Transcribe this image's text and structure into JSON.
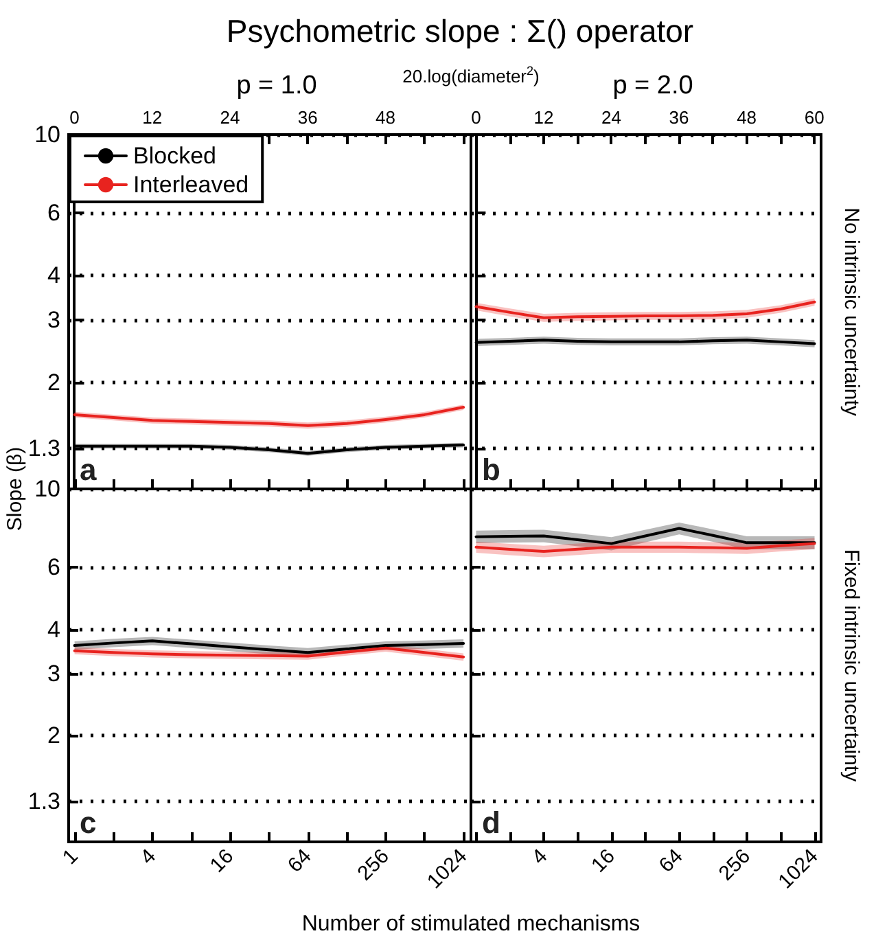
{
  "chart_data": [
    {
      "type": "line",
      "title": "Psychometric slope : Σ() operator",
      "subtitle": "p = 1.0",
      "x2label": "20.log(diameter$^{2}$)",
      "ylabel": "Slope (β)",
      "tick_labels": "y",
      "xlim": [
        0.9,
        1170
      ],
      "xticks": [
        1,
        {
          "value": 2,
          "label": null
        },
        4,
        {
          "value": 8,
          "label": null
        },
        16,
        {
          "value": 32,
          "label": null
        },
        64,
        {
          "value": 128,
          "label": null
        },
        256,
        {
          "value": 512,
          "label": null
        },
        1024
      ],
      "x2lim": [
        -0.9,
        61.2
      ],
      "x2ticks": [
        0,
        {
          "value": 6,
          "label": null
        },
        12,
        {
          "value": 18,
          "label": null
        },
        24,
        {
          "value": 30,
          "label": null
        },
        36,
        {
          "value": 42,
          "label": null
        },
        48,
        {
          "value": 54,
          "label": null
        },
        {
          "value": 60,
          "label": null
        }
      ],
      "ylim": [
        1,
        10
      ],
      "yticks": [
        1.3,
        2,
        3,
        4,
        6,
        10
      ],
      "log": "xy",
      "grid": "y",
      "legend": "top left",
      "annotations": [
        "a"
      ],
      "x": [
        1,
        2,
        4,
        8,
        16,
        32,
        64,
        128,
        256,
        512,
        1024
      ],
      "series": [
        {
          "name": "Blocked",
          "color": "#000000",
          "values": [
            1.32,
            1.32,
            1.32,
            1.32,
            1.31,
            1.29,
            1.26,
            1.29,
            1.31,
            1.32,
            1.33
          ],
          "lower": [
            1.3,
            1.3,
            1.3,
            1.3,
            1.29,
            1.27,
            1.24,
            1.27,
            1.29,
            1.3,
            1.31
          ],
          "upper": [
            1.34,
            1.34,
            1.34,
            1.34,
            1.33,
            1.31,
            1.28,
            1.31,
            1.33,
            1.34,
            1.35
          ]
        },
        {
          "name": "Interleaved",
          "color": "#e8231f",
          "values": [
            1.62,
            1.59,
            1.56,
            1.55,
            1.54,
            1.53,
            1.51,
            1.53,
            1.57,
            1.62,
            1.7
          ],
          "lower": [
            1.59,
            1.56,
            1.53,
            1.52,
            1.51,
            1.5,
            1.48,
            1.5,
            1.54,
            1.59,
            1.67
          ],
          "upper": [
            1.65,
            1.62,
            1.59,
            1.58,
            1.57,
            1.56,
            1.54,
            1.56,
            1.6,
            1.65,
            1.73
          ]
        }
      ]
    },
    {
      "type": "line",
      "subtitle": "p = 2.0",
      "xlim": [
        0.9,
        1170
      ],
      "xticks": [
        1,
        {
          "value": 2,
          "label": null
        },
        4,
        {
          "value": 8,
          "label": null
        },
        16,
        {
          "value": 32,
          "label": null
        },
        64,
        {
          "value": 128,
          "label": null
        },
        256,
        {
          "value": 512,
          "label": null
        },
        1024
      ],
      "x2lim": [
        -0.9,
        61.2
      ],
      "x2ticks": [
        0,
        {
          "value": 6,
          "label": null
        },
        12,
        {
          "value": 18,
          "label": null
        },
        24,
        {
          "value": 30,
          "label": null
        },
        36,
        {
          "value": 42,
          "label": null
        },
        48,
        {
          "value": 54,
          "label": null
        },
        60
      ],
      "ylim": [
        1,
        10
      ],
      "yticks": [
        1.3,
        2,
        3,
        4,
        6,
        10
      ],
      "log": "xy",
      "grid": "y",
      "tick_labels": false,
      "annotations": [
        "b",
        "No intrinsic uncertainty"
      ],
      "x": [
        1,
        2,
        4,
        8,
        16,
        32,
        64,
        128,
        256,
        512,
        1024
      ],
      "series": [
        {
          "color": "#000000",
          "values": [
            2.59,
            2.61,
            2.63,
            2.61,
            2.6,
            2.6,
            2.6,
            2.62,
            2.63,
            2.6,
            2.57
          ],
          "lower": [
            2.53,
            2.55,
            2.57,
            2.55,
            2.54,
            2.54,
            2.54,
            2.56,
            2.57,
            2.54,
            2.51
          ],
          "upper": [
            2.65,
            2.67,
            2.69,
            2.67,
            2.66,
            2.66,
            2.66,
            2.68,
            2.69,
            2.66,
            2.63
          ]
        },
        {
          "color": "#e8231f",
          "values": [
            3.27,
            3.15,
            3.04,
            3.06,
            3.07,
            3.08,
            3.08,
            3.09,
            3.12,
            3.22,
            3.37
          ],
          "lower": [
            3.19,
            3.07,
            2.96,
            2.98,
            2.99,
            3.0,
            3.0,
            3.01,
            3.04,
            3.14,
            3.29
          ],
          "upper": [
            3.35,
            3.23,
            3.12,
            3.14,
            3.15,
            3.16,
            3.16,
            3.17,
            3.2,
            3.3,
            3.45
          ]
        }
      ]
    },
    {
      "type": "line",
      "xlabel": "Number of stimulated mechanisms",
      "xlim": [
        0.9,
        1170
      ],
      "xticks": [
        1,
        {
          "value": 2,
          "label": null
        },
        4,
        {
          "value": 8,
          "label": null
        },
        16,
        {
          "value": 32,
          "label": null
        },
        64,
        {
          "value": 128,
          "label": null
        },
        256,
        {
          "value": 512,
          "label": null
        },
        1024
      ],
      "ylim": [
        1,
        10
      ],
      "yticks": [
        1.3,
        2,
        3,
        4,
        6,
        10
      ],
      "log": "xy",
      "grid": "y",
      "annotations": [
        "c"
      ],
      "x": [
        1,
        2,
        4,
        8,
        16,
        32,
        64,
        128,
        256,
        512,
        1024
      ],
      "series": [
        {
          "color": "#000000",
          "values": [
            3.6,
            3.66,
            3.71,
            3.64,
            3.57,
            3.5,
            3.44,
            3.52,
            3.6,
            3.62,
            3.65
          ],
          "lower": [
            3.5,
            3.56,
            3.61,
            3.54,
            3.47,
            3.4,
            3.34,
            3.42,
            3.5,
            3.52,
            3.55
          ],
          "upper": [
            3.7,
            3.76,
            3.81,
            3.74,
            3.67,
            3.6,
            3.54,
            3.62,
            3.7,
            3.72,
            3.75
          ]
        },
        {
          "color": "#e8231f",
          "values": [
            3.48,
            3.44,
            3.41,
            3.39,
            3.38,
            3.37,
            3.36,
            3.45,
            3.54,
            3.44,
            3.34
          ],
          "lower": [
            3.4,
            3.36,
            3.33,
            3.31,
            3.3,
            3.29,
            3.28,
            3.37,
            3.46,
            3.36,
            3.26
          ],
          "upper": [
            3.56,
            3.52,
            3.49,
            3.47,
            3.46,
            3.45,
            3.44,
            3.53,
            3.62,
            3.52,
            3.42
          ]
        }
      ]
    },
    {
      "type": "line",
      "xlim": [
        0.9,
        1170
      ],
      "xticks": [
        {
          "value": 1,
          "label": null
        },
        {
          "value": 2,
          "label": null
        },
        4,
        {
          "value": 8,
          "label": null
        },
        16,
        {
          "value": 32,
          "label": null
        },
        64,
        {
          "value": 128,
          "label": null
        },
        256,
        {
          "value": 512,
          "label": null
        },
        1024
      ],
      "ylim": [
        1,
        10
      ],
      "yticks": [
        1.3,
        2,
        3,
        4,
        6,
        10
      ],
      "log": "xy",
      "grid": "y",
      "tick_labels": "x",
      "annotations": [
        "d",
        "Fixed intrinsic uncertainty"
      ],
      "x": [
        1,
        2,
        4,
        8,
        16,
        32,
        64,
        128,
        256,
        512,
        1024
      ],
      "series": [
        {
          "color": "#000000",
          "values": [
            7.32,
            7.34,
            7.36,
            7.18,
            7.0,
            7.36,
            7.73,
            7.38,
            7.04,
            7.04,
            7.04
          ],
          "lower": [
            7.02,
            7.04,
            7.06,
            6.88,
            6.7,
            7.06,
            7.43,
            7.08,
            6.74,
            6.74,
            6.74
          ],
          "upper": [
            7.62,
            7.64,
            7.66,
            7.48,
            7.3,
            7.66,
            8.03,
            7.68,
            7.34,
            7.34,
            7.34
          ]
        },
        {
          "color": "#e8231f",
          "values": [
            6.84,
            6.74,
            6.65,
            6.75,
            6.84,
            6.84,
            6.84,
            6.82,
            6.79,
            6.9,
            7.0
          ],
          "lower": [
            6.59,
            6.49,
            6.4,
            6.5,
            6.59,
            6.59,
            6.59,
            6.57,
            6.54,
            6.65,
            6.75
          ],
          "upper": [
            7.09,
            6.99,
            6.9,
            7.0,
            7.09,
            7.09,
            7.09,
            7.07,
            7.04,
            7.15,
            7.25
          ]
        }
      ]
    }
  ]
}
